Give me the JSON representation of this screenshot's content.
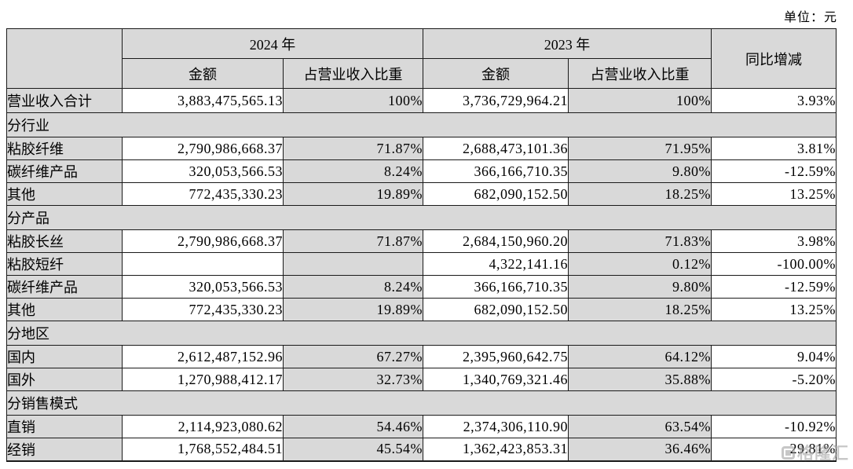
{
  "unit_label": "单位：元",
  "table": {
    "headers": {
      "year_2024": "2024 年",
      "year_2023": "2023 年",
      "amount_2024": "金额",
      "pct_2024": "占营业收入比重",
      "amount_2023": "金额",
      "pct_2023": "占营业收入比重",
      "yoy": "同比增减"
    },
    "rows": [
      {
        "type": "data",
        "total": true,
        "label": "营业收入合计",
        "a24": "3,883,475,565.13",
        "p24": "100%",
        "a23": "3,736,729,964.21",
        "p23": "100%",
        "yoy": "3.93%"
      },
      {
        "type": "section",
        "label": "分行业"
      },
      {
        "type": "data",
        "label": "粘胶纤维",
        "a24": "2,790,986,668.37",
        "p24": "71.87%",
        "a23": "2,688,473,101.36",
        "p23": "71.95%",
        "yoy": "3.81%"
      },
      {
        "type": "data",
        "label": "碳纤维产品",
        "a24": "320,053,566.53",
        "p24": "8.24%",
        "a23": "366,166,710.35",
        "p23": "9.80%",
        "yoy": "-12.59%"
      },
      {
        "type": "data",
        "label": "其他",
        "a24": "772,435,330.23",
        "p24": "19.89%",
        "a23": "682,090,152.50",
        "p23": "18.25%",
        "yoy": "13.25%"
      },
      {
        "type": "section",
        "label": "分产品"
      },
      {
        "type": "data",
        "label": "粘胶长丝",
        "a24": "2,790,986,668.37",
        "p24": "71.87%",
        "a23": "2,684,150,960.20",
        "p23": "71.83%",
        "yoy": "3.98%"
      },
      {
        "type": "data",
        "label": "粘胶短纤",
        "a24": "",
        "p24": "",
        "a23": "4,322,141.16",
        "p23": "0.12%",
        "yoy": "-100.00%"
      },
      {
        "type": "data",
        "label": "碳纤维产品",
        "a24": "320,053,566.53",
        "p24": "8.24%",
        "a23": "366,166,710.35",
        "p23": "9.80%",
        "yoy": "-12.59%"
      },
      {
        "type": "data",
        "label": "其他",
        "a24": "772,435,330.23",
        "p24": "19.89%",
        "a23": "682,090,152.50",
        "p23": "18.25%",
        "yoy": "13.25%"
      },
      {
        "type": "section",
        "label": "分地区"
      },
      {
        "type": "data",
        "label": "国内",
        "a24": "2,612,487,152.96",
        "p24": "67.27%",
        "a23": "2,395,960,642.75",
        "p23": "64.12%",
        "yoy": "9.04%"
      },
      {
        "type": "data",
        "label": "国外",
        "a24": "1,270,988,412.17",
        "p24": "32.73%",
        "a23": "1,340,769,321.46",
        "p23": "35.88%",
        "yoy": "-5.20%"
      },
      {
        "type": "section",
        "label": "分销售模式"
      },
      {
        "type": "data",
        "label": "直销",
        "a24": "2,114,923,080.62",
        "p24": "54.46%",
        "a23": "2,374,306,110.90",
        "p23": "63.54%",
        "yoy": "-10.92%"
      },
      {
        "type": "data",
        "label": "经销",
        "a24": "1,768,552,484.51",
        "p24": "45.54%",
        "a23": "1,362,423,853.31",
        "p23": "36.46%",
        "yoy": "29.81%"
      }
    ]
  },
  "watermark": {
    "text": "格隆汇"
  },
  "colors": {
    "cell_gray": "#d9d9d9",
    "border": "#1a1a1a",
    "watermark_gray": "#9a9a9a"
  }
}
